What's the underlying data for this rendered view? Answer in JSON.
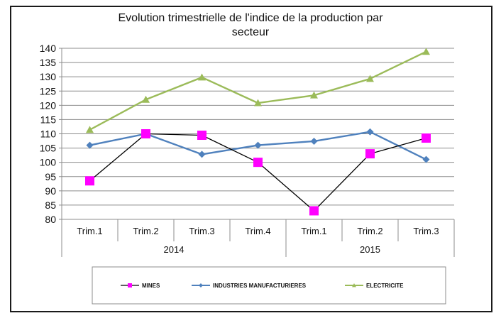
{
  "chart_data": {
    "type": "line",
    "title_lines": [
      "Evolution trimestrielle de l'indice de la production par",
      "secteur"
    ],
    "categories": [
      "Trim.1",
      "Trim.2",
      "Trim.3",
      "Trim.4",
      "Trim.1",
      "Trim.2",
      "Trim.3"
    ],
    "groups": [
      {
        "label": "2014",
        "start": 0,
        "end": 3
      },
      {
        "label": "2015",
        "start": 4,
        "end": 6
      }
    ],
    "ylim": [
      80,
      140
    ],
    "ytick_step": 5,
    "grid": true,
    "legend_position": "bottom",
    "series": [
      {
        "name": "MINES",
        "values": [
          93.5,
          110,
          109.5,
          100,
          83,
          103,
          108.5
        ],
        "line_color": "#000000",
        "marker": "square",
        "marker_color": "#ff00ff"
      },
      {
        "name": "INDUSTRIES MANUFACTURIERES",
        "values": [
          106,
          110,
          102.8,
          106,
          107.4,
          110.7,
          101
        ],
        "line_color": "#4f81bd",
        "marker": "diamond",
        "marker_color": "#4f81bd"
      },
      {
        "name": "ELECTRICITE",
        "values": [
          111.4,
          122,
          129.8,
          120.8,
          123.5,
          129.3,
          138.8
        ],
        "line_color": "#9bbb59",
        "marker": "triangle",
        "marker_color": "#9bbb59"
      }
    ]
  }
}
